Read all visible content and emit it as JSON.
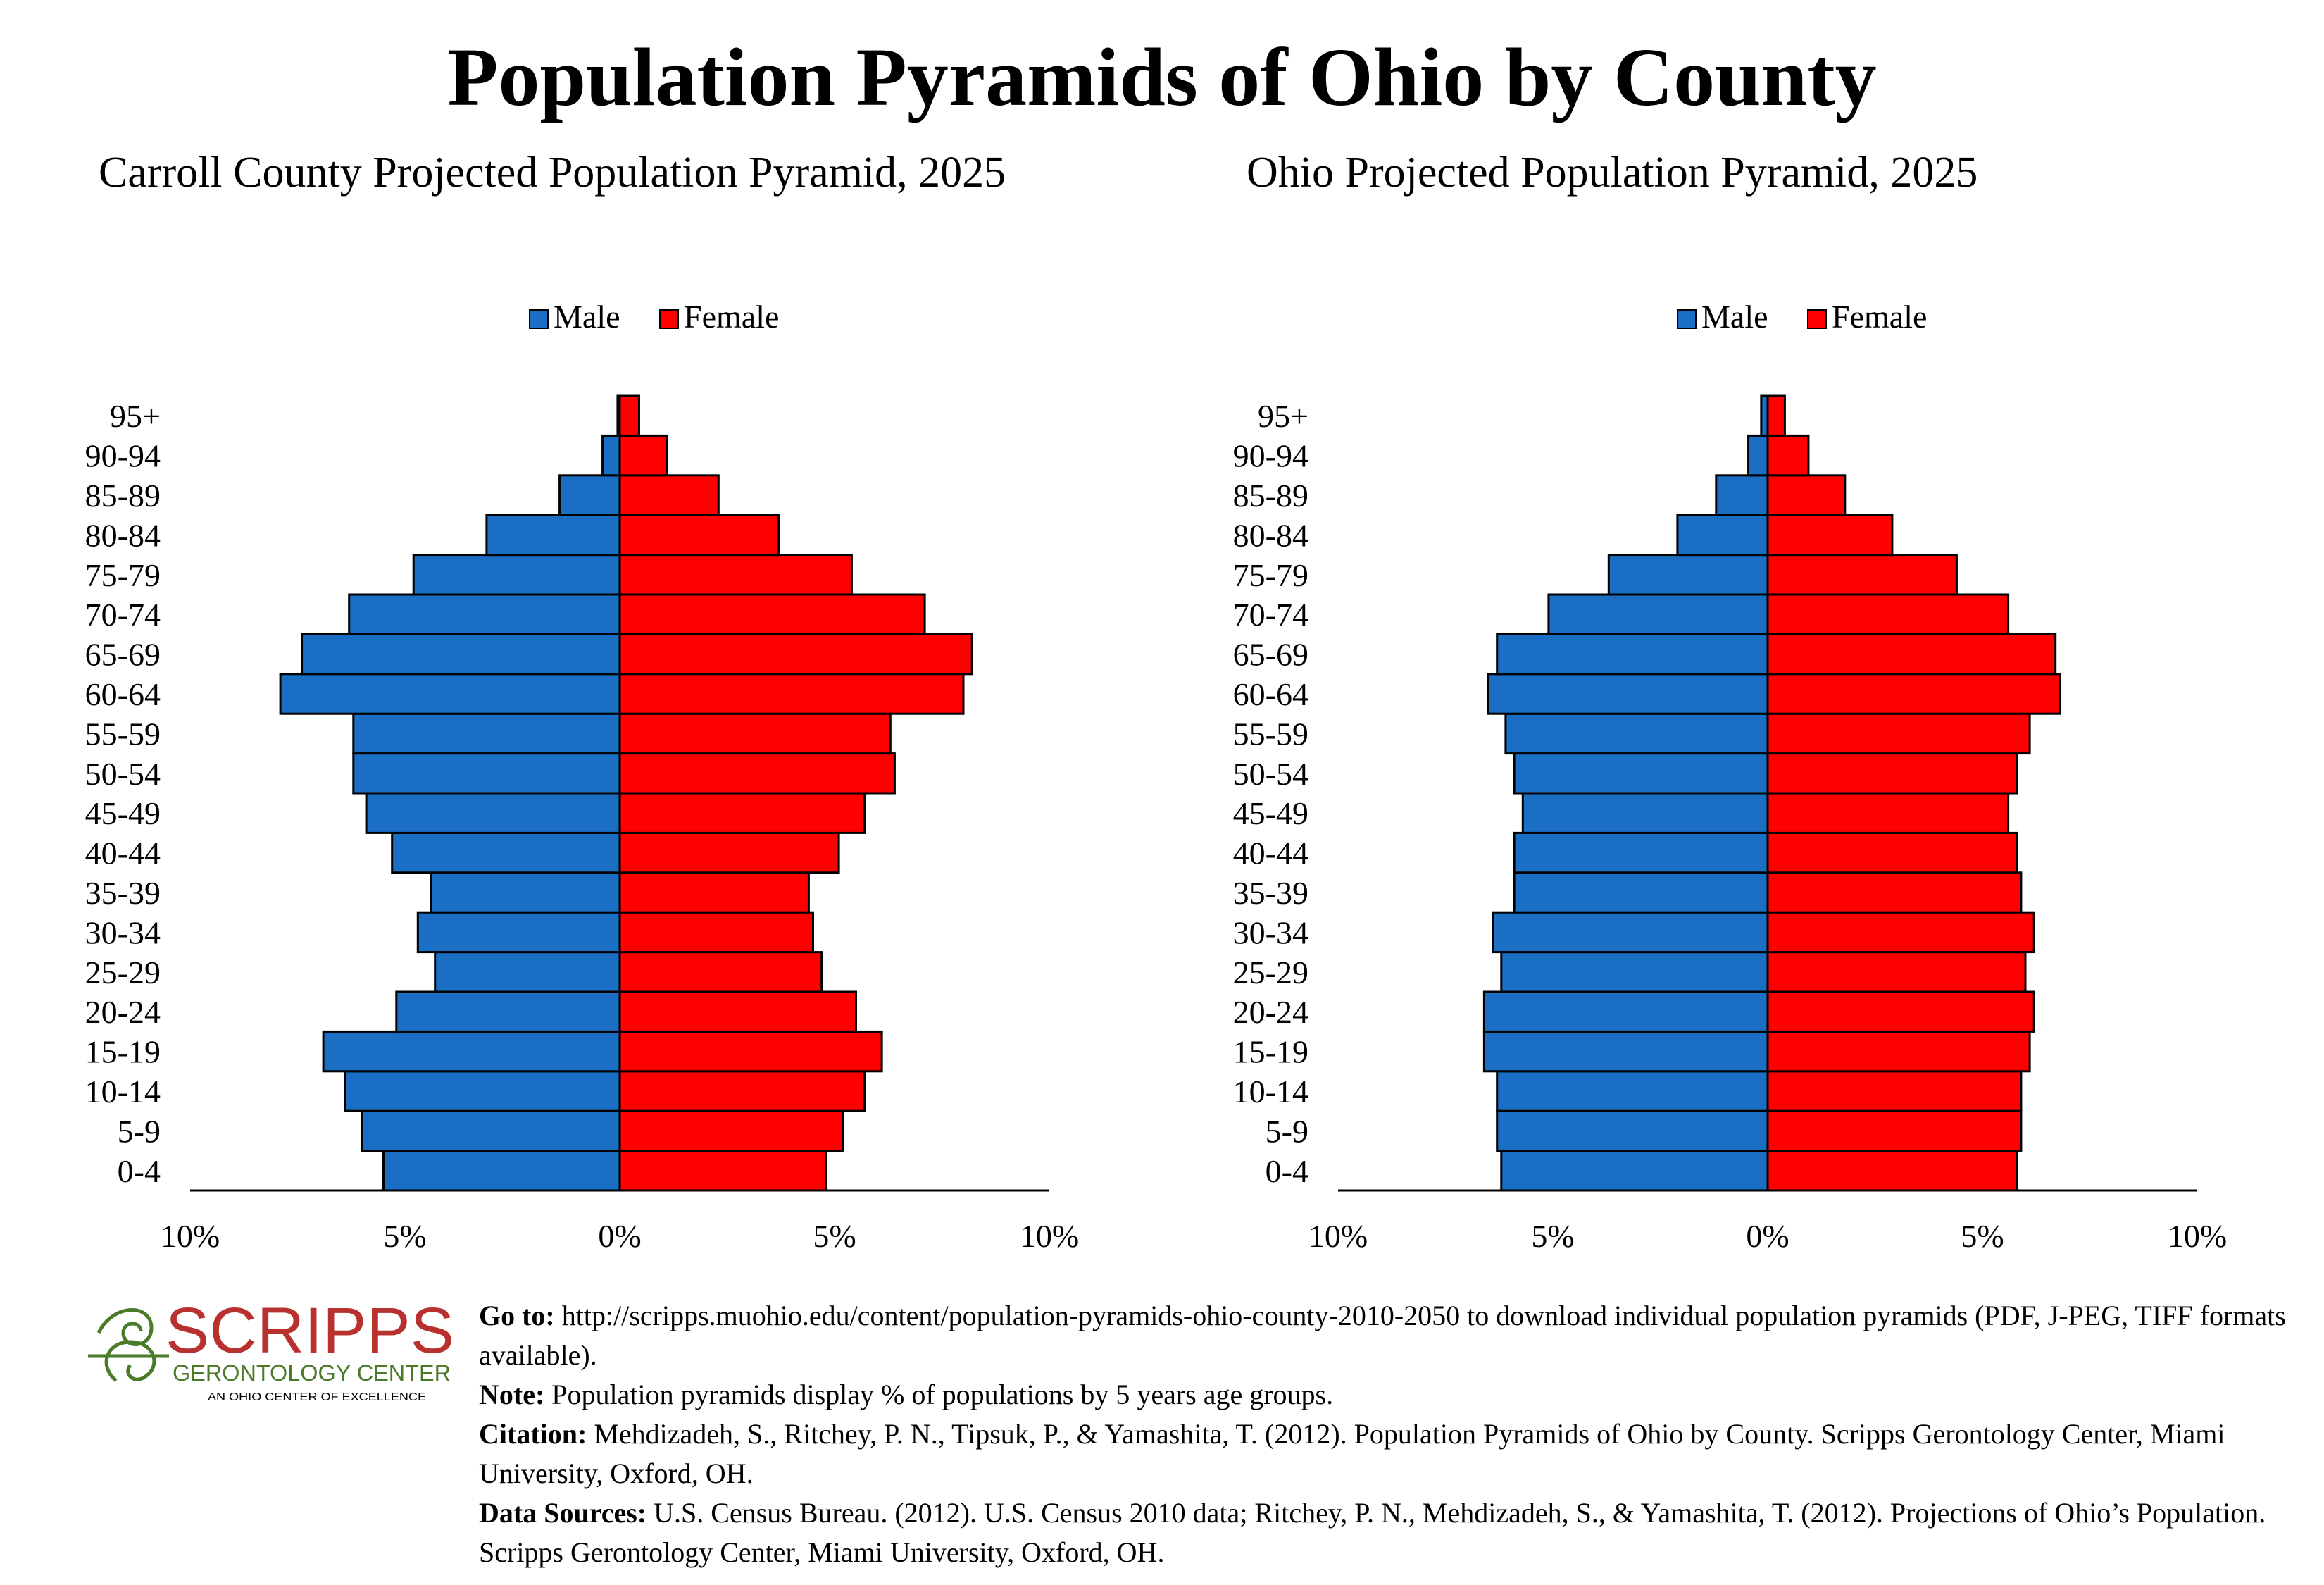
{
  "title": "Population Pyramids of Ohio by County",
  "colors": {
    "male": "#1a6fc4",
    "female": "#ff0000",
    "logo_red": "#b8312f",
    "logo_green": "#4a7a2a"
  },
  "chart_data": [
    {
      "type": "bar",
      "orientation": "horizontal-pyramid",
      "title": "Carroll County Projected Population Pyramid, 2025",
      "legend": {
        "position": "top",
        "items": [
          "Male",
          "Female"
        ]
      },
      "categories": [
        "0-4",
        "5-9",
        "10-14",
        "15-19",
        "20-24",
        "25-29",
        "30-34",
        "35-39",
        "40-44",
        "45-49",
        "50-54",
        "55-59",
        "60-64",
        "65-69",
        "70-74",
        "75-79",
        "80-84",
        "85-89",
        "90-94",
        "95+"
      ],
      "series": [
        {
          "name": "Male",
          "values": [
            5.5,
            6.0,
            6.4,
            6.9,
            5.2,
            4.3,
            4.7,
            4.4,
            5.3,
            5.9,
            6.2,
            6.2,
            7.9,
            7.4,
            6.3,
            4.8,
            3.1,
            1.4,
            0.4,
            0.05
          ]
        },
        {
          "name": "Female",
          "values": [
            4.8,
            5.2,
            5.7,
            6.1,
            5.5,
            4.7,
            4.5,
            4.4,
            5.1,
            5.7,
            6.4,
            6.3,
            8.0,
            8.2,
            7.1,
            5.4,
            3.7,
            2.3,
            1.1,
            0.45
          ]
        }
      ],
      "xlim": [
        -10,
        10
      ],
      "xticks": [
        "10%",
        "5%",
        "0%",
        "5%",
        "10%"
      ]
    },
    {
      "type": "bar",
      "orientation": "horizontal-pyramid",
      "title": "Ohio Projected Population Pyramid, 2025",
      "legend": {
        "position": "top",
        "items": [
          "Male",
          "Female"
        ]
      },
      "categories": [
        "0-4",
        "5-9",
        "10-14",
        "15-19",
        "20-24",
        "25-29",
        "30-34",
        "35-39",
        "40-44",
        "45-49",
        "50-54",
        "55-59",
        "60-64",
        "65-69",
        "70-74",
        "75-79",
        "80-84",
        "85-89",
        "90-94",
        "95+"
      ],
      "series": [
        {
          "name": "Male",
          "values": [
            6.2,
            6.3,
            6.3,
            6.6,
            6.6,
            6.2,
            6.4,
            5.9,
            5.9,
            5.7,
            5.9,
            6.1,
            6.5,
            6.3,
            5.1,
            3.7,
            2.1,
            1.2,
            0.45,
            0.15
          ]
        },
        {
          "name": "Female",
          "values": [
            5.8,
            5.9,
            5.9,
            6.1,
            6.2,
            6.0,
            6.2,
            5.9,
            5.8,
            5.6,
            5.8,
            6.1,
            6.8,
            6.7,
            5.6,
            4.4,
            2.9,
            1.8,
            0.95,
            0.4
          ]
        }
      ],
      "xlim": [
        -10,
        10
      ],
      "xticks": [
        "10%",
        "5%",
        "0%",
        "5%",
        "10%"
      ]
    }
  ],
  "logo": {
    "name": "SCRIPPS",
    "line2": "GERONTOLOGY CENTER",
    "line3": "AN OHIO CENTER OF EXCELLENCE"
  },
  "footer": {
    "goto_label": "Go to:",
    "goto_text": " http://scripps.muohio.edu/content/population-pyramids-ohio-county-2010-2050 to download individual population pyramids (PDF, J-PEG, TIFF formats available).",
    "note_label": "Note:",
    "note_text": " Population pyramids display % of populations by 5 years age groups.",
    "citation_label": "Citation:",
    "citation_text": " Mehdizadeh, S., Ritchey, P. N., Tipsuk, P., & Yamashita, T. (2012). Population Pyramids of Ohio by County. Scripps Gerontology Center, Miami University, Oxford, OH.",
    "sources_label": "Data Sources:",
    "sources_text": " U.S. Census Bureau. (2012). U.S. Census 2010 data; Ritchey, P. N., Mehdizadeh, S., & Yamashita, T. (2012). Projections of Ohio’s Population. Scripps Gerontology Center, Miami University, Oxford, OH."
  }
}
